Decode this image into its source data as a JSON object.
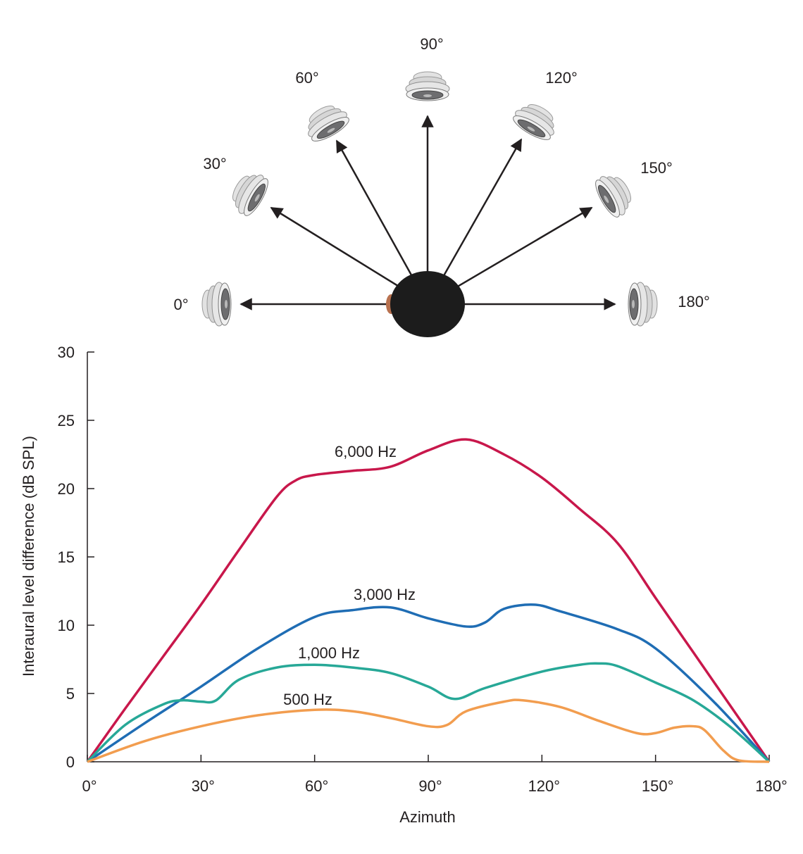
{
  "diagram": {
    "speaker_labels": [
      "0°",
      "30°",
      "60°",
      "90°",
      "120°",
      "150°",
      "180°"
    ],
    "speaker_angles": [
      0,
      30,
      60,
      90,
      120,
      150,
      180
    ]
  },
  "chart_data": {
    "type": "line",
    "title": "",
    "xlabel": "Azimuth",
    "ylabel": "Interaural level difference (dB SPL)",
    "xlim": [
      0,
      180
    ],
    "ylim": [
      0,
      30
    ],
    "x_ticks": [
      0,
      30,
      60,
      90,
      120,
      150,
      180
    ],
    "x_tick_labels": [
      "0°",
      "30°",
      "60°",
      "90°",
      "120°",
      "150°",
      "180°"
    ],
    "y_ticks": [
      0,
      5,
      10,
      15,
      20,
      25,
      30
    ],
    "y_tick_labels": [
      "0",
      "5",
      "10",
      "15",
      "20",
      "25",
      "30"
    ],
    "grid": false,
    "legend": "inline labels",
    "series": [
      {
        "name": "6,000 Hz",
        "color": "#c8174b",
        "x": [
          0,
          10,
          20,
          30,
          40,
          50,
          55,
          60,
          70,
          80,
          90,
          100,
          110,
          120,
          130,
          140,
          150,
          160,
          170,
          180
        ],
        "y": [
          0,
          3.9,
          7.7,
          11.5,
          15.5,
          19.4,
          20.6,
          21.0,
          21.3,
          21.6,
          22.8,
          23.6,
          22.5,
          20.8,
          18.5,
          16.0,
          12.0,
          8.0,
          4.0,
          0
        ]
      },
      {
        "name": "3,000 Hz",
        "color": "#1f6db4",
        "x": [
          0,
          15,
          30,
          45,
          60,
          70,
          80,
          90,
          100,
          105,
          110,
          118,
          125,
          140,
          150,
          165,
          180
        ],
        "y": [
          0,
          2.8,
          5.5,
          8.3,
          10.6,
          11.1,
          11.3,
          10.5,
          9.9,
          10.2,
          11.2,
          11.5,
          11.0,
          9.7,
          8.3,
          4.5,
          0
        ]
      },
      {
        "name": "1,000 Hz",
        "color": "#27a897",
        "x": [
          0,
          10,
          20,
          25,
          30,
          34,
          40,
          50,
          60,
          70,
          80,
          90,
          97,
          105,
          120,
          130,
          135,
          140,
          150,
          160,
          170,
          180
        ],
        "y": [
          0,
          2.7,
          4.2,
          4.5,
          4.4,
          4.5,
          6.0,
          6.9,
          7.1,
          6.9,
          6.5,
          5.5,
          4.6,
          5.4,
          6.6,
          7.1,
          7.2,
          7.0,
          5.8,
          4.5,
          2.5,
          0
        ]
      },
      {
        "name": "500 Hz",
        "color": "#f29d4f",
        "x": [
          0,
          15,
          30,
          45,
          60,
          70,
          80,
          90,
          95,
          100,
          110,
          115,
          125,
          135,
          145,
          150,
          155,
          160,
          163,
          168,
          172,
          180
        ],
        "y": [
          0,
          1.5,
          2.6,
          3.4,
          3.8,
          3.7,
          3.2,
          2.6,
          2.7,
          3.7,
          4.4,
          4.5,
          4.0,
          3.0,
          2.1,
          2.1,
          2.5,
          2.6,
          2.3,
          0.8,
          0.1,
          0
        ]
      }
    ]
  }
}
